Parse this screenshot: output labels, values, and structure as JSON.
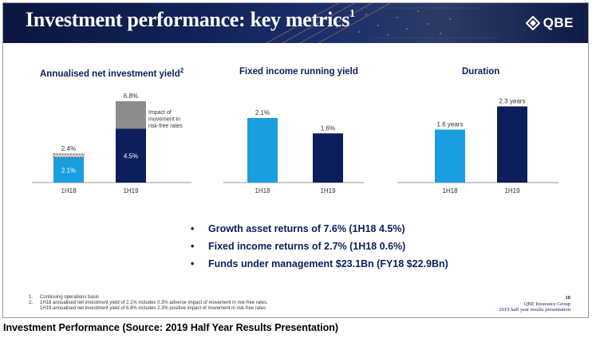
{
  "header": {
    "title": "Investment performance: key metrics",
    "title_sup": "1",
    "logo_text": "QBE"
  },
  "chart_titles": {
    "yield": "Annualised net investment yield",
    "yield_sup": "2",
    "fixed": "Fixed income running yield",
    "duration": "Duration"
  },
  "chart_data": [
    {
      "type": "bar",
      "stacked": true,
      "categories": [
        "1H18",
        "1H19"
      ],
      "series": [
        {
          "name": "",
          "values": [
            2.1,
            4.5
          ],
          "labels": [
            "2.1%",
            "4.5%"
          ],
          "colors": [
            "#1a9ee0",
            "#0c1e5b"
          ]
        },
        {
          "name": "Impact of movement in risk-free rates",
          "values": [
            0.3,
            2.3
          ],
          "colors": [
            "#c8c8c8",
            "#8c8c8c"
          ]
        }
      ],
      "totals": [
        "2.4%",
        "6.8%"
      ],
      "annotation": "Impact of movement in risk-free rates",
      "ylim": [
        0,
        7.2
      ]
    },
    {
      "type": "bar",
      "categories": [
        "1H18",
        "1H19"
      ],
      "values": [
        2.1,
        1.6
      ],
      "labels": [
        "2.1%",
        "1.6%"
      ],
      "colors": [
        "#1a9ee0",
        "#0c1e5b"
      ],
      "ylim": [
        0,
        2.8
      ]
    },
    {
      "type": "bar",
      "categories": [
        "1H18",
        "1H19"
      ],
      "values": [
        1.6,
        2.3
      ],
      "labels": [
        "1.6 years",
        "2.3 years"
      ],
      "colors": [
        "#1a9ee0",
        "#0c1e5b"
      ],
      "ylim": [
        0,
        2.6
      ]
    }
  ],
  "bullets": [
    "Growth asset returns of 7.6% (1H18 4.5%)",
    "Fixed income returns of 2.7% (1H18 0.6%)",
    "Funds under management $23.1Bn (FY18 $22.9Bn)"
  ],
  "bullet_char": "•",
  "footnotes": {
    "n1": "1.",
    "t1": "Continuing operations basis",
    "n2": "2.",
    "t2a": "1H18 annualised net investment yield of 2.1% includes 0.3% adverse impact of movement in risk-free rates.",
    "t2b": "1H19 annualised net investment yield of 6.8% includes 2.3% positive impact of movement in risk-free rates"
  },
  "page_info": {
    "number": "18",
    "company": "QBE Insurance Group",
    "presentation": "2019 half year results presentation"
  },
  "caption": "Investment Performance (Source: 2019 Half Year Results Presentation)",
  "colors": {
    "navy": "#0c1e5b",
    "light_blue": "#1a9ee0",
    "title_blue": "#0a1f5c"
  }
}
